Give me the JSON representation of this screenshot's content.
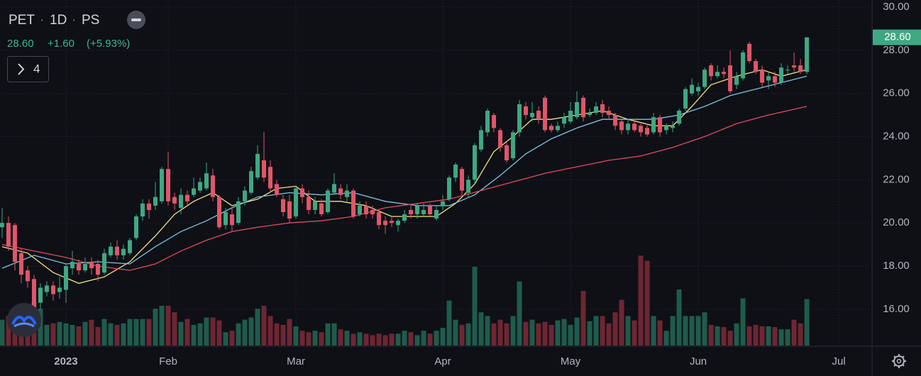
{
  "header": {
    "symbol": "PET",
    "interval": "1D",
    "exchange": "PS",
    "last": "28.60",
    "change": "+1.60",
    "change_pct": "(+5.93%)",
    "indicators": "4"
  },
  "chart_data": {
    "type": "candlestick",
    "colors": {
      "up": "#3fa883",
      "down": "#e0566a",
      "up_volume": "#1f5b4b",
      "down_volume": "#6e2633"
    },
    "xlim": [
      -0.33,
      136.1
    ],
    "ylim": [
      14.32,
      30.33
    ],
    "volume_lim": [
      0,
      130
    ],
    "grid": true,
    "xticks": [
      {
        "value": 10,
        "label": "2023"
      },
      {
        "value": 26,
        "label": "Feb"
      },
      {
        "value": 46,
        "label": "Mar"
      },
      {
        "value": 69,
        "label": "Apr"
      },
      {
        "value": 89,
        "label": "May"
      },
      {
        "value": 109,
        "label": "Jun"
      },
      {
        "value": 131,
        "label": "Jul"
      }
    ],
    "yticks": [
      {
        "value": 16,
        "label": "16.00"
      },
      {
        "value": 18,
        "label": "18.00"
      },
      {
        "value": 20,
        "label": "20.00"
      },
      {
        "value": 22,
        "label": "22.00"
      },
      {
        "value": 24,
        "label": "24.00"
      },
      {
        "value": 26,
        "label": "26.00"
      },
      {
        "value": 28,
        "label": "28.00"
      },
      {
        "value": 30,
        "label": "30.00"
      }
    ],
    "last_price": {
      "value": 28.6,
      "label": "28.60"
    },
    "open": [
      19.8,
      20.0,
      19.9,
      18.6,
      17.8,
      17.4,
      16.3,
      16.8,
      17.1,
      16.8,
      16.9,
      17.9,
      18.1,
      17.8,
      18.2,
      18.1,
      17.7,
      18.5,
      18.9,
      18.5,
      18.6,
      19.3,
      20.3,
      20.9,
      20.8,
      21.0,
      22.5,
      21.2,
      20.7,
      21.3,
      21.3,
      21.5,
      21.6,
      22.2,
      21.2,
      19.9,
      20.4,
      20.0,
      21.0,
      21.4,
      22.1,
      22.9,
      22.6,
      21.8,
      21.1,
      21.0,
      20.3,
      21.6,
      21.2,
      20.6,
      20.9,
      20.5,
      21.4,
      21.6,
      21.2,
      21.5,
      20.4,
      20.8,
      20.6,
      20.5,
      20.1,
      20.1,
      19.9,
      20.1,
      20.6,
      20.4,
      20.4,
      20.8,
      20.2,
      20.8,
      21.1,
      22.1,
      22.5,
      21.4,
      22.0,
      23.4,
      24.2,
      25.0,
      24.3,
      23.6,
      23.0,
      24.2,
      25.4,
      24.9,
      25.2,
      25.8,
      24.5,
      24.3,
      24.6,
      24.7,
      24.9,
      25.8,
      25.0,
      25.1,
      25.5,
      25.2,
      25.0,
      24.7,
      24.3,
      24.6,
      24.5,
      24.4,
      24.2,
      24.9,
      24.3,
      24.4,
      24.6,
      25.3,
      26.0,
      26.1,
      26.3,
      27.3,
      26.8,
      27.0,
      27.3,
      26.4,
      26.7,
      28.3,
      27.5,
      27.1,
      26.6,
      26.8,
      26.5,
      27.1,
      27.3,
      27.3,
      27.0
    ],
    "high": [
      20.7,
      20.3,
      20.0,
      18.8,
      18.0,
      17.6,
      17.2,
      17.3,
      17.3,
      17.5,
      18.1,
      18.7,
      18.3,
      18.4,
      18.4,
      18.3,
      18.8,
      19.1,
      19.2,
      19.0,
      19.3,
      20.4,
      21.1,
      21.1,
      21.9,
      22.6,
      23.3,
      21.4,
      21.6,
      21.5,
      22.1,
      22.1,
      22.8,
      22.5,
      21.3,
      20.7,
      20.7,
      21.2,
      21.7,
      22.6,
      23.6,
      24.2,
      22.9,
      22.0,
      21.3,
      21.3,
      21.7,
      21.8,
      21.5,
      21.2,
      21.1,
      21.6,
      22.3,
      21.8,
      21.8,
      21.6,
      21.0,
      21.0,
      20.8,
      20.6,
      20.3,
      20.3,
      20.2,
      20.6,
      20.8,
      20.9,
      20.9,
      20.9,
      20.8,
      21.3,
      22.2,
      22.8,
      22.6,
      22.2,
      23.7,
      24.5,
      25.3,
      25.1,
      24.4,
      23.7,
      24.3,
      25.7,
      25.6,
      25.6,
      25.4,
      25.9,
      24.6,
      24.7,
      25.1,
      25.6,
      26.1,
      25.9,
      25.3,
      25.6,
      25.7,
      25.4,
      25.1,
      24.8,
      24.8,
      24.8,
      24.6,
      24.6,
      25.1,
      25.0,
      24.6,
      24.7,
      25.3,
      26.3,
      26.7,
      26.5,
      27.2,
      27.4,
      27.3,
      27.2,
      28.0,
      27.0,
      28.0,
      28.4,
      27.6,
      27.3,
      27.0,
      27.0,
      27.4,
      27.3,
      27.9,
      27.6,
      28.6
    ],
    "low": [
      19.3,
      18.7,
      17.8,
      17.2,
      17.0,
      15.9,
      16.0,
      16.6,
      16.4,
      16.5,
      16.3,
      17.6,
      17.6,
      17.7,
      17.6,
      17.3,
      17.6,
      18.4,
      18.3,
      18.3,
      18.5,
      19.2,
      20.1,
      20.2,
      20.6,
      20.9,
      20.8,
      20.6,
      20.4,
      20.8,
      21.2,
      21.4,
      21.5,
      21.0,
      19.7,
      19.7,
      19.6,
      19.9,
      20.8,
      21.3,
      22.0,
      21.9,
      21.4,
      21.2,
      20.3,
      20.0,
      20.2,
      20.9,
      20.4,
      20.4,
      20.3,
      20.4,
      21.3,
      21.1,
      21.0,
      20.2,
      20.3,
      20.2,
      20.2,
      19.7,
      19.5,
      19.8,
      19.6,
      20.0,
      20.2,
      20.2,
      20.3,
      20.3,
      20.1,
      20.6,
      21.0,
      21.9,
      21.3,
      21.2,
      21.8,
      23.3,
      24.0,
      24.2,
      23.3,
      22.8,
      22.9,
      24.0,
      24.8,
      24.7,
      24.6,
      24.2,
      24.2,
      24.2,
      24.4,
      24.6,
      24.8,
      24.7,
      24.9,
      25.0,
      24.9,
      24.8,
      24.3,
      24.1,
      24.1,
      24.2,
      24.0,
      24.0,
      24.1,
      24.0,
      24.1,
      24.2,
      24.5,
      25.2,
      25.9,
      25.9,
      26.2,
      26.6,
      26.7,
      26.7,
      26.0,
      26.2,
      26.6,
      27.4,
      26.9,
      26.3,
      26.2,
      26.3,
      26.4,
      26.9,
      27.0,
      26.9,
      26.9
    ],
    "close": [
      20.0,
      18.9,
      18.2,
      17.6,
      17.3,
      16.1,
      17.0,
      17.1,
      16.7,
      17.0,
      18.0,
      18.2,
      17.8,
      18.1,
      17.9,
      17.6,
      18.6,
      18.9,
      18.5,
      18.8,
      19.2,
      20.3,
      20.9,
      20.6,
      21.2,
      22.5,
      21.0,
      20.9,
      21.3,
      21.0,
      21.6,
      21.9,
      22.3,
      21.2,
      19.8,
      20.5,
      19.9,
      21.0,
      21.5,
      22.4,
      23.2,
      22.1,
      21.6,
      21.3,
      20.5,
      20.2,
      21.6,
      21.2,
      20.6,
      21.0,
      20.4,
      21.5,
      21.8,
      21.3,
      21.5,
      20.3,
      20.8,
      20.4,
      20.4,
      19.9,
      19.9,
      20.0,
      20.1,
      20.4,
      20.4,
      20.8,
      20.6,
      20.4,
      20.6,
      21.0,
      22.1,
      22.7,
      21.5,
      22.0,
      23.6,
      24.3,
      25.2,
      24.4,
      23.5,
      22.9,
      24.2,
      25.5,
      25.0,
      25.1,
      24.8,
      24.3,
      24.3,
      24.5,
      24.9,
      25.2,
      25.6,
      24.9,
      25.1,
      25.4,
      25.1,
      25.0,
      24.5,
      24.3,
      24.6,
      24.3,
      24.2,
      24.1,
      24.9,
      24.2,
      24.5,
      24.5,
      25.2,
      26.2,
      26.4,
      26.3,
      27.1,
      26.8,
      27.0,
      26.9,
      26.1,
      26.8,
      27.9,
      27.5,
      27.0,
      26.5,
      26.8,
      26.5,
      27.2,
      27.1,
      27.2,
      27.0,
      28.6
    ],
    "volume": [
      35,
      40,
      45,
      38,
      30,
      60,
      50,
      28,
      30,
      32,
      30,
      28,
      26,
      32,
      35,
      25,
      36,
      30,
      28,
      30,
      36,
      36,
      36,
      36,
      50,
      54,
      54,
      45,
      32,
      36,
      28,
      30,
      38,
      38,
      34,
      18,
      20,
      30,
      35,
      38,
      50,
      54,
      40,
      30,
      28,
      36,
      26,
      20,
      18,
      20,
      18,
      30,
      30,
      22,
      20,
      16,
      18,
      16,
      14,
      16,
      14,
      16,
      16,
      20,
      18,
      14,
      20,
      16,
      20,
      24,
      61,
      35,
      28,
      30,
      107,
      45,
      40,
      30,
      35,
      30,
      40,
      87,
      32,
      35,
      30,
      32,
      28,
      34,
      36,
      28,
      38,
      74,
      33,
      40,
      40,
      30,
      45,
      62,
      40,
      34,
      122,
      115,
      40,
      34,
      20,
      40,
      76,
      40,
      40,
      40,
      45,
      28,
      26,
      25,
      20,
      30,
      64,
      26,
      28,
      26,
      26,
      25,
      22,
      22,
      35,
      30,
      63
    ],
    "lines": [
      {
        "color": "#f3e27f",
        "x": [
          0,
          4,
          8,
          12,
          16,
          20,
          24,
          27,
          30,
          33,
          36,
          40,
          43,
          46,
          49,
          53,
          57,
          61,
          65,
          68,
          71,
          74,
          77,
          80,
          83,
          86,
          90,
          94,
          98,
          102,
          105,
          108,
          111,
          115,
          119,
          122,
          126
        ],
        "values": [
          18.9,
          18.6,
          17.7,
          17.2,
          17.5,
          18.2,
          19.4,
          20.4,
          21.0,
          21.4,
          20.8,
          21.1,
          21.6,
          21.7,
          21.0,
          21.0,
          20.8,
          20.3,
          20.3,
          20.3,
          20.9,
          21.8,
          23.3,
          24.0,
          24.8,
          24.8,
          25.0,
          25.2,
          24.8,
          24.5,
          24.5,
          25.4,
          26.4,
          26.8,
          27.1,
          26.8,
          27.1
        ]
      },
      {
        "color": "#7fc4df",
        "x": [
          0,
          5,
          10,
          15,
          20,
          24,
          28,
          32,
          36,
          40,
          45,
          50,
          55,
          60,
          65,
          70,
          74,
          78,
          82,
          86,
          90,
          94,
          98,
          102,
          106,
          110,
          114,
          118,
          122,
          126
        ],
        "values": [
          17.9,
          18.5,
          18.1,
          18.2,
          18.1,
          18.9,
          19.6,
          20.1,
          20.7,
          21.2,
          21.4,
          21.3,
          21.4,
          21.0,
          20.8,
          20.8,
          21.3,
          22.2,
          23.2,
          23.9,
          24.4,
          24.8,
          24.8,
          24.8,
          25.0,
          25.4,
          25.9,
          26.2,
          26.5,
          26.8
        ]
      },
      {
        "color": "#e04a5f",
        "x": [
          0,
          5,
          10,
          15,
          20,
          24,
          28,
          32,
          36,
          40,
          45,
          50,
          55,
          60,
          65,
          70,
          75,
          80,
          85,
          90,
          95,
          100,
          105,
          110,
          115,
          120,
          126
        ],
        "values": [
          19.0,
          18.7,
          18.4,
          18.0,
          17.8,
          18.1,
          18.7,
          19.2,
          19.6,
          19.8,
          20.0,
          20.1,
          20.3,
          20.7,
          20.9,
          21.1,
          21.5,
          21.9,
          22.3,
          22.6,
          22.9,
          23.1,
          23.5,
          24.0,
          24.6,
          25.0,
          25.4
        ]
      }
    ]
  }
}
